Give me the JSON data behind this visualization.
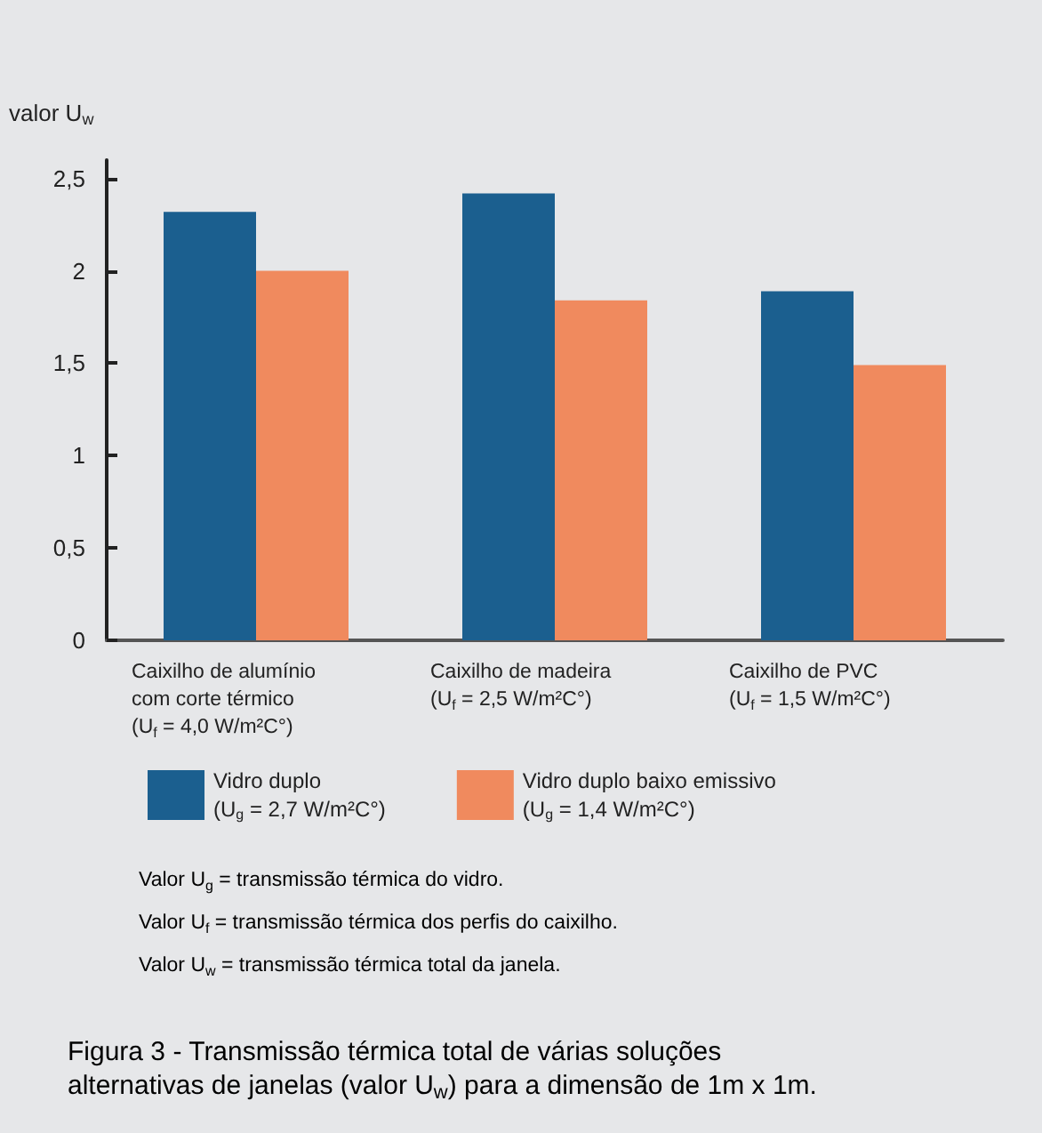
{
  "chart_data": {
    "type": "bar",
    "ylabel": "valor U$_{w}$",
    "categories": [
      "Caixilho de alumínio\ncom corte térmico\n(U$_{f}$ = 4,0 W/m²C°)",
      "Caixilho de madeira\n(U$_{f}$ = 2,5 W/m²C°)",
      "Caixilho de PVC\n(U$_{f}$ = 1,5 W/m²C°)"
    ],
    "series": [
      {
        "name": "Vidro duplo\n(U$_{g}$ = 2,7 W/m²C°)",
        "color": "#1b5f8f",
        "values": [
          2.32,
          2.42,
          1.89
        ]
      },
      {
        "name": "Vidro duplo baixo emissivo\n(U$_{g}$ = 1,4 W/m²C°)",
        "color": "#f08a5e",
        "values": [
          2.0,
          1.84,
          1.49
        ]
      }
    ],
    "ylim": [
      0,
      2.6
    ],
    "yticks": [
      0,
      {
        "value": 0.5,
        "label": "0,5"
      },
      1,
      {
        "value": 1.5,
        "label": "1,5"
      },
      2,
      {
        "value": 2.5,
        "label": "2,5"
      }
    ],
    "grid": false,
    "legend": "bottom",
    "annotations": [
      "Valor U$_{g}$ = transmissão térmica do vidro.",
      "Valor U$_{f}$ = transmissão térmica dos perfis do caixilho.",
      "Valor U$_{w}$ = transmissão térmica total da janela.",
      "Figura 3 - Transmissão térmica total de várias soluções alternativas de janelas (valor U$_{w}$) para a dimensão de 1m x 1m."
    ]
  }
}
